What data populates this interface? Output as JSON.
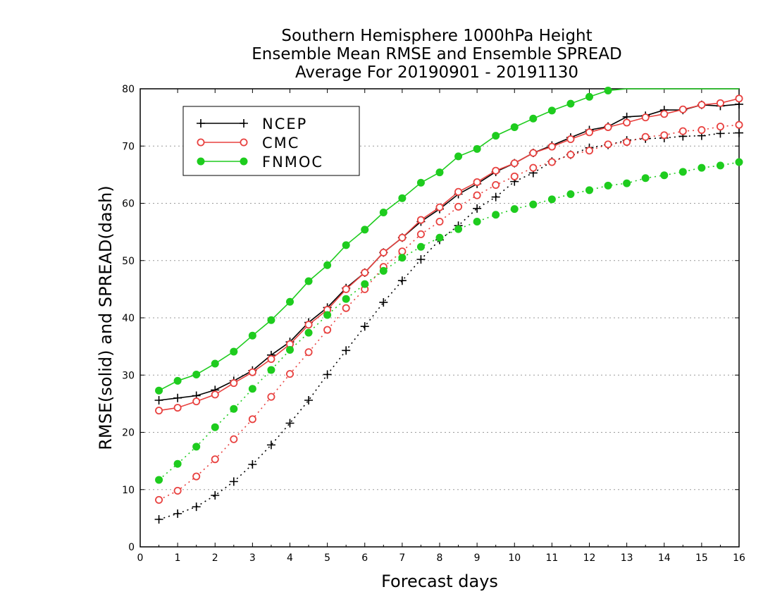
{
  "chart_data": {
    "type": "line",
    "title": [
      "Southern Hemisphere 1000hPa Height",
      "Ensemble Mean RMSE and Ensemble SPREAD",
      "Average For 20190901 - 20191130"
    ],
    "xlabel": "Forecast days",
    "ylabel": "RMSE(solid) and SPREAD(dash)",
    "xlim": [
      0,
      16
    ],
    "ylim": [
      0,
      80
    ],
    "xticks": [
      0,
      1,
      2,
      3,
      4,
      5,
      6,
      7,
      8,
      9,
      10,
      11,
      12,
      13,
      14,
      15,
      16
    ],
    "yticks": [
      0,
      10,
      20,
      30,
      40,
      50,
      60,
      70,
      80
    ],
    "grid": "horizontal dotted",
    "legend_position": "top-left",
    "x": [
      0.5,
      1,
      1.5,
      2,
      2.5,
      3,
      3.5,
      4,
      4.5,
      5,
      5.5,
      6,
      6.5,
      7,
      7.5,
      8,
      8.5,
      9,
      9.5,
      10,
      10.5,
      11,
      11.5,
      12,
      12.5,
      13,
      13.5,
      14,
      14.5,
      15,
      15.5,
      16
    ],
    "series": [
      {
        "name": "NCEP",
        "color": "#000000",
        "marker": "plus",
        "rmse": [
          25.6,
          26.0,
          26.4,
          27.4,
          29.0,
          30.8,
          33.5,
          35.8,
          39.2,
          41.8,
          45.2,
          47.9,
          51.4,
          54.0,
          56.8,
          59.0,
          61.6,
          63.4,
          65.5,
          67.0,
          68.8,
          70.1,
          71.5,
          72.8,
          73.4,
          75.1,
          75.3,
          76.3,
          76.3,
          77.2,
          77.0,
          77.3
        ],
        "spread": [
          4.8,
          5.8,
          7.0,
          9.0,
          11.4,
          14.4,
          17.8,
          21.6,
          25.6,
          30.1,
          34.3,
          38.5,
          42.7,
          46.5,
          50.2,
          53.6,
          56.1,
          59.1,
          61.1,
          63.8,
          65.3,
          67.3,
          68.5,
          69.7,
          70.2,
          71.0,
          71.3,
          71.4,
          71.7,
          71.8,
          72.2,
          72.3
        ]
      },
      {
        "name": "CMC",
        "color": "#e8413f",
        "marker": "open-circle",
        "rmse": [
          23.8,
          24.3,
          25.4,
          26.6,
          28.6,
          30.5,
          32.8,
          35.4,
          38.8,
          41.4,
          45.0,
          47.9,
          51.4,
          54.0,
          57.1,
          59.3,
          62.0,
          63.7,
          65.7,
          67.0,
          68.8,
          69.9,
          71.2,
          72.4,
          73.3,
          74.1,
          75.0,
          75.6,
          76.4,
          77.2,
          77.5,
          78.3
        ],
        "spread": [
          8.2,
          9.8,
          12.3,
          15.3,
          18.8,
          22.3,
          26.2,
          30.2,
          34.0,
          37.9,
          41.7,
          45.0,
          48.9,
          51.6,
          54.6,
          56.8,
          59.4,
          61.4,
          63.2,
          64.7,
          66.2,
          67.2,
          68.5,
          69.2,
          70.3,
          70.7,
          71.6,
          71.9,
          72.6,
          72.8,
          73.4,
          73.7
        ]
      },
      {
        "name": "FNMOC",
        "color": "#1ecc1e",
        "marker": "filled-circle",
        "rmse": [
          27.3,
          29.0,
          30.1,
          32.0,
          34.1,
          36.9,
          39.6,
          42.8,
          46.4,
          49.2,
          52.7,
          55.4,
          58.4,
          60.9,
          63.6,
          65.4,
          68.2,
          69.5,
          71.8,
          73.3,
          74.8,
          76.2,
          77.4,
          78.6,
          79.7,
          80.0,
          80.0,
          80.0,
          80.0,
          80.0,
          80.0,
          80.0
        ],
        "spread": [
          11.7,
          14.5,
          17.5,
          20.9,
          24.1,
          27.6,
          30.9,
          34.4,
          37.4,
          40.5,
          43.3,
          45.9,
          48.2,
          50.5,
          52.4,
          54.0,
          55.5,
          56.8,
          58.0,
          59.0,
          59.8,
          60.7,
          61.6,
          62.3,
          63.1,
          63.5,
          64.4,
          64.9,
          65.5,
          66.2,
          66.6,
          67.2
        ]
      }
    ]
  }
}
